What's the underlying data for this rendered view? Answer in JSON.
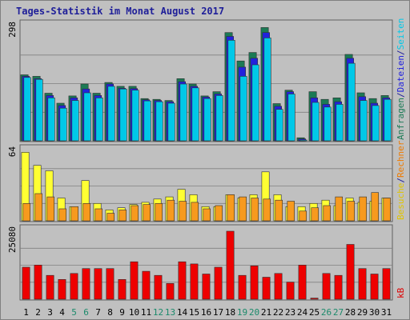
{
  "chart_data": {
    "type": "bar",
    "title": "Tages-Statistik im Monat August 2017",
    "categories": [
      "1",
      "2",
      "3",
      "4",
      "5",
      "6",
      "7",
      "8",
      "9",
      "10",
      "11",
      "12",
      "13",
      "14",
      "15",
      "16",
      "17",
      "18",
      "19",
      "20",
      "21",
      "22",
      "23",
      "24",
      "25",
      "26",
      "27",
      "28",
      "29",
      "30",
      "31"
    ],
    "weekend_days": [
      "5",
      "6",
      "12",
      "13",
      "19",
      "20",
      "26",
      "27"
    ],
    "grid": true,
    "panels": [
      {
        "id": "top",
        "max_label": "298",
        "ylim": [
          0,
          298
        ],
        "right_labels": [
          {
            "text": "Anfragen",
            "color": "#1b7a55"
          },
          {
            "text": "/",
            "color": "#1e1e99"
          },
          {
            "text": "Dateien",
            "color": "#2222dd"
          },
          {
            "text": "/",
            "color": "#1e1e99"
          },
          {
            "text": "Seiten",
            "color": "#00c8e8"
          }
        ],
        "series": [
          {
            "name": "Anfragen",
            "color": "#1b7a55",
            "values": [
              172,
              168,
              124,
              98,
              117,
              148,
              124,
              152,
              142,
              142,
              110,
              108,
              105,
              162,
              148,
              117,
              128,
              282,
              208,
              230,
              295,
              97,
              132,
              8,
              128,
              108,
              112,
              225,
              125,
              110,
              118
            ]
          },
          {
            "name": "Dateien",
            "color": "#2222dd",
            "values": [
              168,
              162,
              118,
              92,
              112,
              135,
              118,
              148,
              137,
              136,
              107,
              105,
              102,
              154,
              142,
              114,
              122,
              272,
              192,
              215,
              282,
              90,
              128,
              5,
              112,
              95,
              102,
              215,
              115,
              98,
              112
            ]
          },
          {
            "name": "Seiten",
            "color": "#00c8e8",
            "values": [
              165,
              160,
              112,
              85,
              105,
              125,
              112,
              142,
              135,
              132,
              104,
              102,
              98,
              148,
              138,
              110,
              118,
              262,
              168,
              198,
              268,
              82,
              122,
              2,
              100,
              88,
              95,
              202,
              105,
              92,
              108
            ]
          }
        ]
      },
      {
        "id": "middle",
        "max_label": "64",
        "ylim": [
          0,
          64
        ],
        "right_labels": [
          {
            "text": "Besuche",
            "color": "#e0c400"
          },
          {
            "text": "/",
            "color": "#1e1e99"
          },
          {
            "text": "Rechner",
            "color": "#ee7a00"
          }
        ],
        "series": [
          {
            "name": "Besuche",
            "color": "#ffff33",
            "values": [
              63,
              51,
              46,
              21,
              13,
              37,
              16,
              10,
              12,
              15,
              17,
              20,
              22,
              29,
              24,
              13,
              13,
              24,
              21,
              24,
              45,
              24,
              13,
              13,
              16,
              19,
              14,
              21,
              17,
              18,
              21
            ]
          },
          {
            "name": "Rechner",
            "color": "#f79a1e",
            "values": [
              16,
              25,
              22,
              11,
              13,
              16,
              11,
              7,
              10,
              14,
              15,
              16,
              19,
              18,
              17,
              11,
              14,
              24,
              22,
              21,
              20,
              19,
              18,
              9,
              12,
              14,
              22,
              18,
              22,
              26,
              21
            ]
          }
        ]
      },
      {
        "id": "bottom",
        "max_label": "25080",
        "ylim": [
          0,
          25080
        ],
        "right_labels": [
          {
            "text": "kB",
            "color": "#dd0000"
          }
        ],
        "series": [
          {
            "name": "kB",
            "color": "#ee0000",
            "values": [
              11800,
              12600,
              8800,
              7300,
              9500,
              11300,
              11300,
              11300,
              7300,
              13800,
              10300,
              8800,
              5800,
              13800,
              13000,
              9300,
              11800,
              25080,
              8800,
              12300,
              8100,
              9500,
              6300,
              12600,
              400,
              9500,
              8800,
              20200,
              11300,
              9300,
              11300
            ]
          }
        ]
      }
    ]
  }
}
